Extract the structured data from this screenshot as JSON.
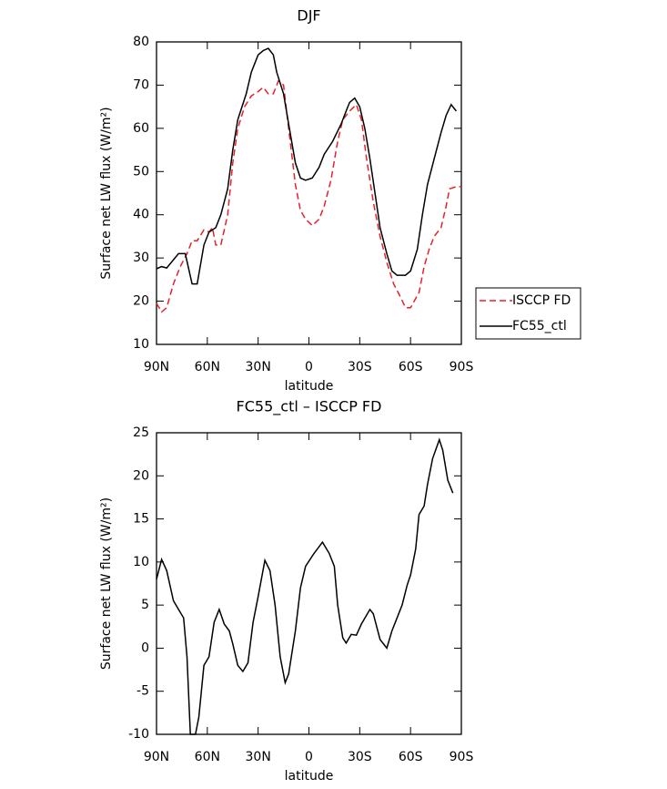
{
  "chart_data": [
    {
      "type": "line",
      "title": "DJF",
      "xlabel": "latitude",
      "ylabel": "Surface net LW flux (W/m²)",
      "xlim": [
        90,
        -90
      ],
      "ylim": [
        10,
        80
      ],
      "xticks": [
        {
          "value": 90,
          "label": "90N"
        },
        {
          "value": 60,
          "label": "60N"
        },
        {
          "value": 30,
          "label": "30N"
        },
        0,
        {
          "value": -30,
          "label": "30S"
        },
        {
          "value": -60,
          "label": "60S"
        },
        {
          "value": -90,
          "label": "90S"
        }
      ],
      "yticks": [
        10,
        20,
        30,
        40,
        50,
        60,
        70,
        80
      ],
      "legend": "right",
      "series": [
        {
          "name": "ISCCP FD",
          "color": "#e8202a",
          "dash": true,
          "x": [
            90,
            87,
            84,
            80,
            76,
            72,
            69,
            66,
            62,
            59,
            57,
            55,
            52,
            48,
            45,
            42,
            38,
            34,
            30,
            27,
            24,
            21,
            18,
            15,
            12,
            8,
            5,
            2,
            -2,
            -6,
            -9,
            -13,
            -17,
            -20,
            -24,
            -28,
            -31,
            -34,
            -38,
            -42,
            -46,
            -50,
            -54,
            -57,
            -60,
            -65,
            -68,
            -71,
            -74,
            -78,
            -81,
            -83,
            -87,
            -90
          ],
          "values": [
            19.5,
            17.5,
            18.5,
            24,
            28,
            31,
            34,
            34,
            36.5,
            36,
            37,
            33,
            33,
            40,
            52,
            60,
            65,
            67.5,
            68.5,
            69.5,
            68,
            68,
            71,
            70,
            60,
            47,
            41,
            39,
            37.5,
            39,
            42,
            48,
            57,
            62,
            64,
            65.5,
            62,
            53,
            43,
            35,
            29,
            24,
            21,
            18.5,
            18.5,
            22,
            28,
            32,
            35,
            37,
            42,
            46,
            46.5,
            46.5
          ]
        },
        {
          "name": "FC55_ctl",
          "color": "#000000",
          "dash": false,
          "x": [
            90,
            87,
            84,
            77,
            73,
            69,
            66,
            62,
            59,
            55,
            52,
            48,
            45,
            42,
            37,
            34,
            30,
            27,
            24,
            21,
            19,
            15,
            12,
            8,
            5,
            2,
            -2,
            -6,
            -9,
            -14,
            -19,
            -22,
            -24,
            -27,
            -30,
            -33,
            -36,
            -39,
            -42,
            -46,
            -49,
            -52,
            -57,
            -60,
            -64,
            -67,
            -70,
            -74,
            -78,
            -81,
            -84,
            -87
          ],
          "values": [
            27.5,
            28,
            27.7,
            31,
            31,
            24,
            24,
            33,
            36,
            37,
            40,
            46,
            55,
            62,
            68,
            73,
            77,
            78,
            78.5,
            77,
            73,
            68,
            61,
            52,
            48.5,
            48,
            48.5,
            51,
            54,
            57,
            61,
            64,
            66,
            67,
            65,
            60,
            53,
            45,
            37,
            31,
            27,
            26,
            26,
            27,
            32,
            40,
            47,
            53,
            59,
            63,
            65.5,
            64
          ]
        }
      ]
    },
    {
      "type": "line",
      "title": "FC55_ctl – ISCCP FD",
      "xlabel": "latitude",
      "ylabel": "Surface net LW flux (W/m²)",
      "xlim": [
        90,
        -90
      ],
      "ylim": [
        -10,
        25
      ],
      "xticks": [
        {
          "value": 90,
          "label": "90N"
        },
        {
          "value": 60,
          "label": "60N"
        },
        {
          "value": 30,
          "label": "30N"
        },
        0,
        {
          "value": -30,
          "label": "30S"
        },
        {
          "value": -60,
          "label": "60S"
        },
        {
          "value": -90,
          "label": "90S"
        }
      ],
      "yticks": [
        -10,
        -5,
        0,
        5,
        10,
        15,
        20,
        25
      ],
      "color": "#000000",
      "x": [
        90,
        87,
        84,
        80,
        77,
        74,
        72,
        70,
        67,
        65,
        62,
        59,
        56,
        53,
        50,
        47,
        45,
        42,
        39,
        36,
        33,
        30,
        26,
        23,
        20,
        17,
        14,
        12,
        8,
        5,
        2,
        -3,
        -8,
        -12,
        -15,
        -17,
        -20,
        -22,
        -25,
        -28,
        -31,
        -36,
        -38,
        -42,
        -46,
        -49,
        -52,
        -55,
        -58,
        -60,
        -63,
        -65,
        -68,
        -70,
        -73,
        -77,
        -79,
        -82,
        -85
      ],
      "values": [
        8,
        10.3,
        9,
        5.5,
        4.5,
        3.5,
        -1,
        -10,
        -10,
        -8,
        -2,
        -1,
        3,
        4.5,
        2.8,
        2,
        0.5,
        -2,
        -2.7,
        -1.7,
        3,
        6,
        10.2,
        9,
        5,
        -1,
        -4,
        -3,
        2,
        7,
        9.5,
        11,
        12.3,
        11,
        9.5,
        5,
        1.2,
        0.6,
        1.6,
        1.5,
        2.8,
        4.5,
        4,
        1,
        0,
        2,
        3.5,
        5,
        7.3,
        8.5,
        11.5,
        15.5,
        16.5,
        19,
        22,
        24.2,
        23,
        19.5,
        18
      ]
    }
  ]
}
